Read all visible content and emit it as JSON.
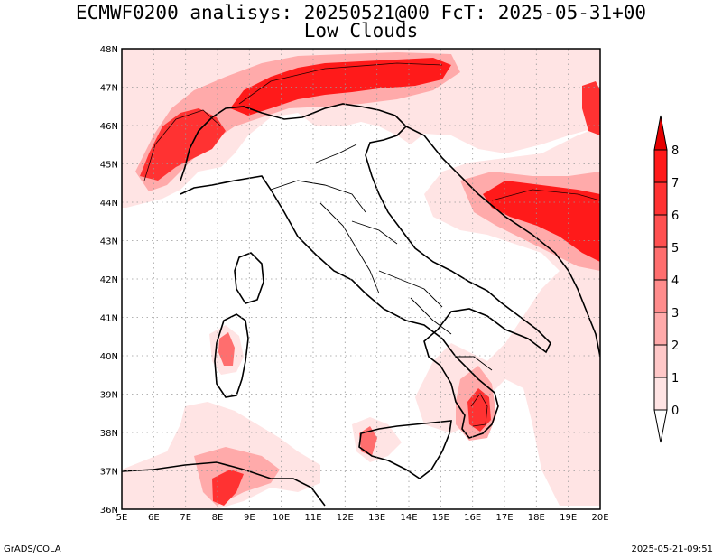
{
  "title": {
    "line1": "ECMWF0200 analisys: 20250521@00 FcT: 2025-05-31+00",
    "line2": "Low Clouds"
  },
  "footer": {
    "left": "GrADS/COLA",
    "right": "2025-05-21-09:51"
  },
  "map": {
    "lon_range": [
      5,
      20
    ],
    "lat_range": [
      36,
      48
    ],
    "x_ticks": [
      "5E",
      "6E",
      "7E",
      "8E",
      "9E",
      "10E",
      "11E",
      "12E",
      "13E",
      "14E",
      "15E",
      "16E",
      "17E",
      "18E",
      "19E",
      "20E"
    ],
    "y_ticks": [
      "36N",
      "37N",
      "38N",
      "39N",
      "40N",
      "41N",
      "42N",
      "43N",
      "44N",
      "45N",
      "46N",
      "47N",
      "48N"
    ],
    "grid": true
  },
  "colorbar": {
    "levels": [
      "0",
      "1",
      "2",
      "3",
      "4",
      "5",
      "6",
      "7",
      "8"
    ],
    "colors": [
      "#ffe4e4",
      "#ffc8c8",
      "#ffaaaa",
      "#ff8c8c",
      "#ff6e6e",
      "#ff5050",
      "#ff3232",
      "#ff1a1a",
      "#e60000"
    ]
  },
  "colors": {
    "frame": "#000000",
    "grid": "#9a9a9a",
    "light_cloud": "#ffe4e4"
  }
}
